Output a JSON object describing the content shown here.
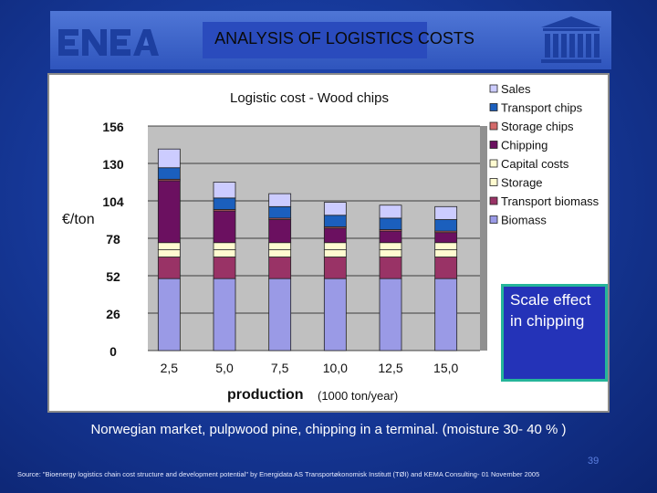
{
  "header": {
    "logo_left": "ENEA",
    "title": "ANALYSIS OF LOGISTICS COSTS",
    "logo_right": "UNESCO"
  },
  "chart_data": {
    "type": "bar",
    "stacked": true,
    "title": "Logistic cost - Wood chips",
    "xlabel": "production",
    "xlabel_unit": "(1000 ton/year)",
    "ylabel": "€/ton",
    "categories": [
      "2,5",
      "5,0",
      "7,5",
      "10,0",
      "12,5",
      "15,0"
    ],
    "yticks": [
      "0",
      "26",
      "52",
      "78",
      "104",
      "130",
      "156"
    ],
    "ylim": [
      0,
      156
    ],
    "grid": true,
    "legend_position": "right",
    "series": [
      {
        "name": "Biomass",
        "color": "#9a9ae6",
        "values": [
          50,
          50,
          50,
          50,
          50,
          50
        ]
      },
      {
        "name": "Transport biomass",
        "color": "#993366",
        "values": [
          15,
          15,
          15,
          15,
          15,
          15
        ]
      },
      {
        "name": "Storage",
        "color": "#fffbd0",
        "values": [
          5,
          5,
          5,
          5,
          5,
          5
        ]
      },
      {
        "name": "Capital costs",
        "color": "#fffbd0",
        "values": [
          5,
          5,
          5,
          5,
          5,
          5
        ]
      },
      {
        "name": "Chipping",
        "color": "#6b1060",
        "values": [
          43,
          22,
          16,
          10,
          8,
          7
        ]
      },
      {
        "name": "Storage chips",
        "color": "#d46a6a",
        "values": [
          1,
          1,
          1,
          1,
          1,
          1
        ]
      },
      {
        "name": "Transport chips",
        "color": "#1b5fbd",
        "values": [
          8,
          8,
          8,
          8,
          8,
          8
        ]
      },
      {
        "name": "Sales",
        "color": "#ccccff",
        "values": [
          13,
          11,
          9,
          9,
          9,
          9
        ]
      }
    ]
  },
  "callout": "Scale effect   in chipping",
  "caption": "Norwegian market,  pulpwood pine,  chipping in a terminal. (moisture 30- 40 % )",
  "page_number": "39",
  "source": "Source: \"Bioenergy logistics chain cost structure and development potential\" by Energidata AS Transportøkonomisk Institutt (TØI) and KEMA Consulting- 01 November 2005"
}
